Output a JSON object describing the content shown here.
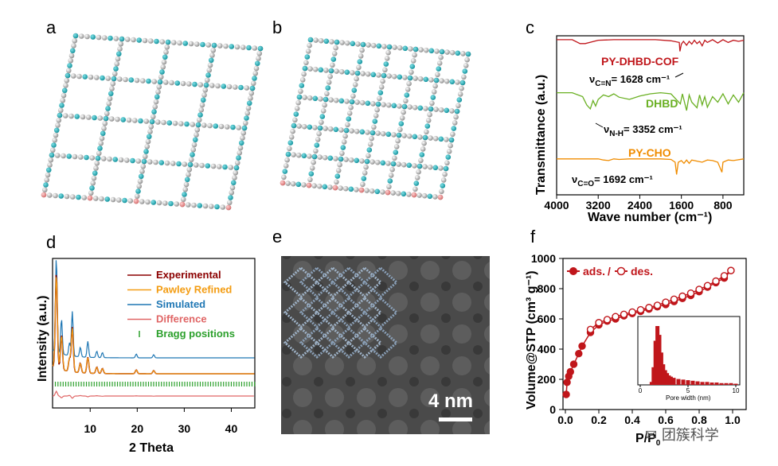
{
  "panels": {
    "a": "a",
    "b": "b",
    "c": "c",
    "d": "d",
    "e": "e",
    "f": "f"
  },
  "colors": {
    "cof": "#c0161b",
    "dhbd": "#6ab023",
    "pycho": "#f08c00",
    "experimental": "#8b0000",
    "pawley": "#f39c12",
    "simulated": "#1f77b4",
    "difference": "#e06666",
    "bragg": "#2ca02c",
    "red": "#c0161b"
  },
  "chart_data": [
    {
      "type": "line",
      "panel": "c",
      "xlabel": "Wave number",
      "xlabel_unit": "(cm⁻¹)",
      "ylabel": "Transmittance (a.u.)",
      "x_reversed": true,
      "xlim": [
        4000,
        400
      ],
      "xticks": [
        "4000",
        "3200",
        "2400",
        "1600",
        "800"
      ],
      "series": [
        {
          "name": "PY-DHBD-COF",
          "color": "#c0161b",
          "x": [
            4000,
            3700,
            3550,
            3450,
            3200,
            2900,
            2500,
            2100,
            1800,
            1640,
            1628,
            1600,
            1560,
            1500,
            1450,
            1400,
            1350,
            1300,
            1250,
            1200,
            1150,
            1100,
            1000,
            900,
            800,
            700,
            600,
            500,
            400
          ],
          "y": [
            0.93,
            0.93,
            0.86,
            0.86,
            0.92,
            0.93,
            0.93,
            0.93,
            0.91,
            0.88,
            0.72,
            0.85,
            0.9,
            0.83,
            0.9,
            0.85,
            0.92,
            0.86,
            0.9,
            0.82,
            0.92,
            0.88,
            0.93,
            0.87,
            0.93,
            0.88,
            0.92,
            0.9,
            0.92
          ]
        },
        {
          "name": "DHBD",
          "color": "#6ab023",
          "x": [
            4000,
            3700,
            3500,
            3420,
            3352,
            3300,
            3250,
            3200,
            3100,
            3000,
            2900,
            2800,
            2600,
            2400,
            2200,
            2000,
            1800,
            1620,
            1580,
            1500,
            1450,
            1400,
            1300,
            1250,
            1200,
            1150,
            1100,
            1000,
            900,
            800,
            700,
            600,
            500,
            400
          ],
          "y": [
            0.62,
            0.62,
            0.55,
            0.4,
            0.33,
            0.48,
            0.38,
            0.5,
            0.58,
            0.55,
            0.6,
            0.54,
            0.5,
            0.56,
            0.6,
            0.62,
            0.6,
            0.42,
            0.6,
            0.3,
            0.58,
            0.45,
            0.35,
            0.58,
            0.4,
            0.55,
            0.36,
            0.55,
            0.45,
            0.6,
            0.42,
            0.58,
            0.45,
            0.62
          ]
        },
        {
          "name": "PY-CHO",
          "color": "#f08c00",
          "x": [
            4000,
            3200,
            3100,
            3000,
            2900,
            2800,
            2600,
            2400,
            2000,
            1800,
            1720,
            1692,
            1660,
            1600,
            1550,
            1500,
            1450,
            1400,
            1300,
            1200,
            1100,
            1000,
            900,
            820,
            800,
            700,
            600,
            400
          ],
          "y": [
            0.36,
            0.36,
            0.34,
            0.33,
            0.36,
            0.35,
            0.36,
            0.36,
            0.36,
            0.35,
            0.3,
            0.08,
            0.3,
            0.33,
            0.28,
            0.34,
            0.28,
            0.34,
            0.32,
            0.3,
            0.34,
            0.33,
            0.3,
            0.12,
            0.3,
            0.34,
            0.33,
            0.36
          ]
        }
      ],
      "annotations": [
        {
          "text": "ν",
          "sub": "C=N",
          "rest": "= 1628 cm⁻¹"
        },
        {
          "text": "ν",
          "sub": "N-H",
          "rest": "= 3352 cm⁻¹"
        },
        {
          "text": "ν",
          "sub": "C=O",
          "rest": "= 1692 cm⁻¹"
        }
      ]
    },
    {
      "type": "line",
      "panel": "d",
      "xlabel": "2 Theta",
      "ylabel": "Intensity (a.u.)",
      "xlim": [
        2,
        45
      ],
      "xticks": [
        "10",
        "20",
        "30",
        "40"
      ],
      "legend_placement": "top-right",
      "series": [
        {
          "name": "Experimental",
          "color": "#8b0000"
        },
        {
          "name": "Pawley Refined",
          "color": "#f39c12"
        },
        {
          "name": "Simulated",
          "color": "#1f77b4"
        },
        {
          "name": "Difference",
          "color": "#e06666"
        },
        {
          "name": "Bragg positions",
          "color": "#2ca02c"
        }
      ],
      "peaks_x": [
        2.8,
        3.9,
        5.6,
        6.2,
        7.9,
        9.5,
        11.4,
        12.6,
        19.8,
        23.5
      ]
    },
    {
      "type": "line",
      "panel": "f",
      "xlabel": "P/P",
      "xlabel_sub": "0",
      "ylabel": "Volume@STP (cm³ g⁻¹)",
      "xlim": [
        0,
        1.0
      ],
      "ylim": [
        0,
        1000
      ],
      "xticks": [
        "0.0",
        "0.2",
        "0.4",
        "0.6",
        "0.8",
        "1.0"
      ],
      "yticks": [
        "0",
        "200",
        "400",
        "600",
        "800",
        "1000"
      ],
      "series": [
        {
          "name": "ads.",
          "color": "#c0161b",
          "x": [
            0.005,
            0.01,
            0.02,
            0.03,
            0.05,
            0.08,
            0.1,
            0.15,
            0.2,
            0.25,
            0.3,
            0.35,
            0.4,
            0.45,
            0.5,
            0.55,
            0.6,
            0.65,
            0.7,
            0.75,
            0.8,
            0.85,
            0.9,
            0.95,
            0.99
          ],
          "y": [
            100,
            180,
            220,
            250,
            300,
            370,
            420,
            510,
            560,
            585,
            600,
            620,
            635,
            650,
            665,
            680,
            695,
            715,
            735,
            755,
            780,
            810,
            840,
            870,
            920
          ]
        },
        {
          "name": "des.",
          "color": "#c0161b",
          "x": [
            0.99,
            0.95,
            0.9,
            0.85,
            0.8,
            0.75,
            0.7,
            0.65,
            0.6,
            0.55,
            0.5,
            0.45,
            0.4,
            0.35,
            0.3,
            0.25,
            0.2,
            0.15
          ],
          "y": [
            920,
            885,
            850,
            820,
            795,
            770,
            750,
            730,
            710,
            690,
            675,
            660,
            645,
            630,
            615,
            595,
            575,
            530
          ]
        }
      ],
      "inset": {
        "type": "bar",
        "xlabel": "Pore width (nm)",
        "xticks": [
          "0",
          "5",
          "10"
        ],
        "x": [
          1.2,
          1.4,
          1.6,
          1.8,
          2.0,
          2.2,
          2.4,
          2.6,
          2.8,
          3.0,
          3.2,
          3.5,
          4.0,
          4.5,
          5.0,
          5.5,
          6.0,
          6.5,
          7.0,
          7.5,
          8.0,
          8.5,
          9.0,
          9.5,
          10.0
        ],
        "values": [
          0.05,
          0.3,
          0.75,
          1.0,
          0.85,
          0.55,
          0.35,
          0.25,
          0.2,
          0.16,
          0.14,
          0.12,
          0.1,
          0.09,
          0.08,
          0.07,
          0.06,
          0.05,
          0.05,
          0.04,
          0.04,
          0.03,
          0.03,
          0.03,
          0.02
        ]
      }
    }
  ],
  "panel_e": {
    "scalebar_label": "4 nm"
  },
  "watermark": "团簇科学"
}
